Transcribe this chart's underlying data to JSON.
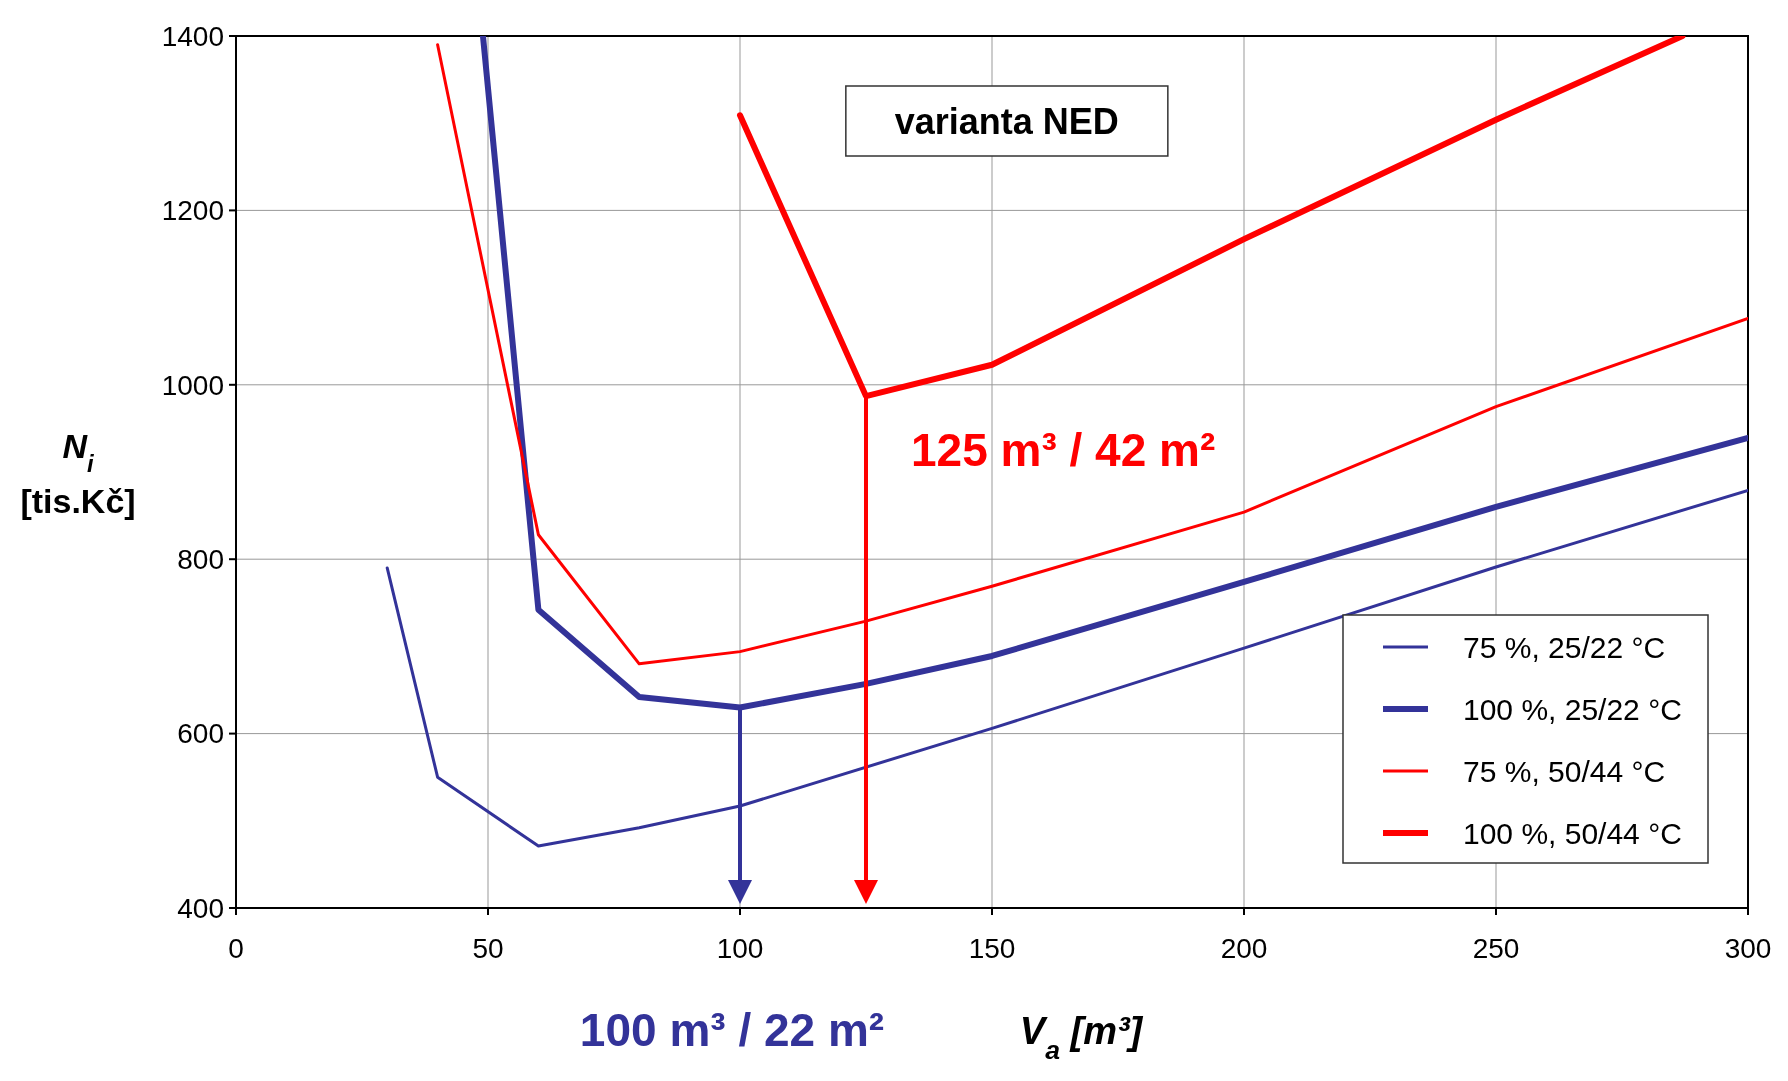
{
  "chart_data": {
    "type": "line",
    "xlabel": "V$_{a}$ [m³]",
    "ylabel": "N$_{i}$ [tis.Kč]",
    "xlim": [
      0,
      300
    ],
    "ylim": [
      400,
      1400
    ],
    "xticks": [
      0,
      50,
      100,
      150,
      200,
      250,
      300
    ],
    "yticks": [
      400,
      600,
      800,
      1000,
      1200,
      1400
    ],
    "grid": true,
    "legend": "bottom right",
    "marker": "none",
    "line_style": "solid",
    "annotations": [
      "varianta NED",
      "100 m³ / 22 m²",
      "125 m³ / 42 m²"
    ],
    "series": [
      {
        "name": "75 %, 25/22 °C",
        "color": "#333399",
        "x": [
          30,
          40,
          60,
          80,
          100,
          150,
          200,
          250,
          300
        ],
        "values": [
          790,
          550,
          471,
          492,
          517,
          606,
          698,
          791,
          879
        ]
      },
      {
        "name": "100 %, 25/22 °C",
        "color": "#333399",
        "x": [
          49,
          60,
          80,
          100,
          125,
          150,
          200,
          250,
          300
        ],
        "values": [
          1400,
          742,
          642,
          630,
          657,
          689,
          774,
          860,
          939
        ]
      },
      {
        "name": "75 %, 50/44 °C",
        "color": "#ff0000",
        "x": [
          40,
          60,
          80,
          100,
          125,
          150,
          200,
          250,
          300
        ],
        "values": [
          1390,
          828,
          680,
          694,
          729,
          769,
          854,
          975,
          1076
        ]
      },
      {
        "name": "100 %, 50/44 °C",
        "color": "#ff0000",
        "x": [
          100,
          125,
          150,
          200,
          250,
          287
        ],
        "values": [
          1309,
          987,
          1023,
          1167,
          1304,
          1400
        ]
      }
    ]
  }
}
